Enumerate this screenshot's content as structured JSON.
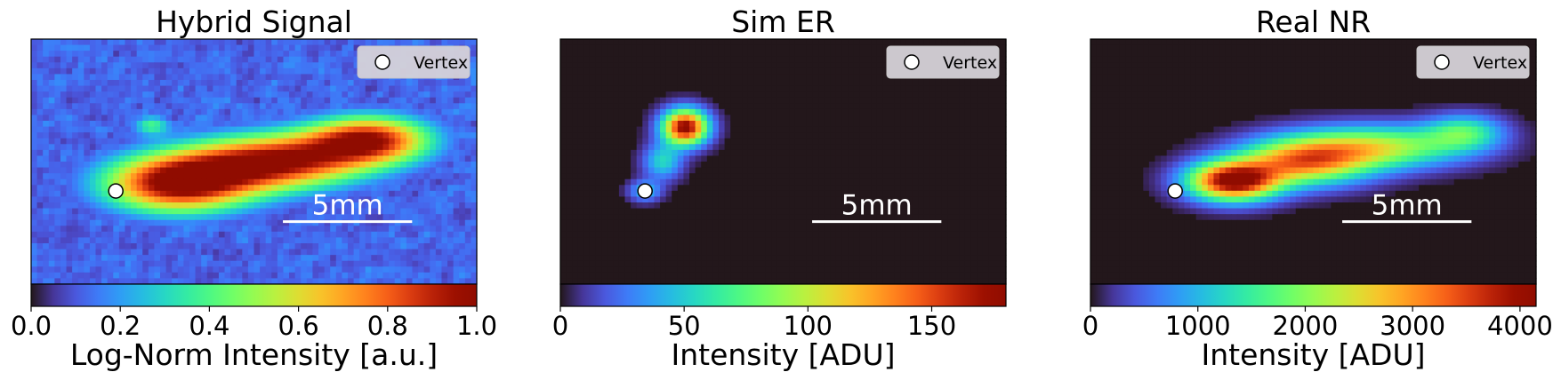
{
  "chart_data": [
    {
      "type": "heatmap",
      "title": "Hybrid Signal",
      "legend": {
        "marker": "white-circle",
        "label": "Vertex",
        "placement": "top-right"
      },
      "scalebar": {
        "label": "5mm"
      },
      "vertex": {
        "x": 0.19,
        "y": 0.62
      },
      "colorbar": {
        "label": "Log-Norm Intensity [a.u.]",
        "range": [
          0.0,
          1.0
        ],
        "ticks": [
          0.0,
          0.2,
          0.4,
          0.6,
          0.8,
          1.0
        ],
        "tick_labels": [
          "0.0",
          "0.2",
          "0.4",
          "0.6",
          "0.8",
          "1.0"
        ]
      },
      "colormap": "turbo",
      "background_level": 0.12,
      "blobs": [
        {
          "x": 0.33,
          "y": 0.59,
          "sx": 0.12,
          "sy": 0.085,
          "amp": 1.0
        },
        {
          "x": 0.55,
          "y": 0.5,
          "sx": 0.14,
          "sy": 0.08,
          "amp": 0.92
        },
        {
          "x": 0.76,
          "y": 0.41,
          "sx": 0.1,
          "sy": 0.07,
          "amp": 0.88
        },
        {
          "x": 0.27,
          "y": 0.35,
          "sx": 0.03,
          "sy": 0.03,
          "amp": 0.35
        }
      ]
    },
    {
      "type": "heatmap",
      "title": "Sim ER",
      "legend": {
        "marker": "white-circle",
        "label": "Vertex",
        "placement": "top-right"
      },
      "scalebar": {
        "label": "5mm"
      },
      "vertex": {
        "x": 0.19,
        "y": 0.62
      },
      "colorbar": {
        "label": "Intensity [ADU]",
        "range": [
          0,
          180
        ],
        "ticks": [
          0,
          50,
          100,
          150
        ],
        "tick_labels": [
          "0",
          "50",
          "100",
          "150"
        ]
      },
      "colormap": "turbo",
      "background_level": 0.0,
      "blobs": [
        {
          "x": 0.28,
          "y": 0.36,
          "sx": 0.035,
          "sy": 0.05,
          "amp": 1.0
        },
        {
          "x": 0.23,
          "y": 0.5,
          "sx": 0.03,
          "sy": 0.05,
          "amp": 0.3
        },
        {
          "x": 0.19,
          "y": 0.62,
          "sx": 0.025,
          "sy": 0.03,
          "amp": 0.25
        }
      ]
    },
    {
      "type": "heatmap",
      "title": "Real NR",
      "legend": {
        "marker": "white-circle",
        "label": "Vertex",
        "placement": "top-right"
      },
      "scalebar": {
        "label": "5mm"
      },
      "vertex": {
        "x": 0.19,
        "y": 0.62
      },
      "colorbar": {
        "label": "Intensity [ADU]",
        "range": [
          0,
          4150
        ],
        "ticks": [
          0,
          1000,
          2000,
          3000,
          4000
        ],
        "tick_labels": [
          "0",
          "1000",
          "2000",
          "3000",
          "4000"
        ]
      },
      "colormap": "turbo",
      "background_level": 0.0,
      "blobs": [
        {
          "x": 0.32,
          "y": 0.58,
          "sx": 0.07,
          "sy": 0.055,
          "amp": 1.0
        },
        {
          "x": 0.48,
          "y": 0.5,
          "sx": 0.1,
          "sy": 0.065,
          "amp": 0.7
        },
        {
          "x": 0.65,
          "y": 0.44,
          "sx": 0.13,
          "sy": 0.06,
          "amp": 0.52
        },
        {
          "x": 0.84,
          "y": 0.38,
          "sx": 0.06,
          "sy": 0.05,
          "amp": 0.35
        }
      ]
    }
  ]
}
